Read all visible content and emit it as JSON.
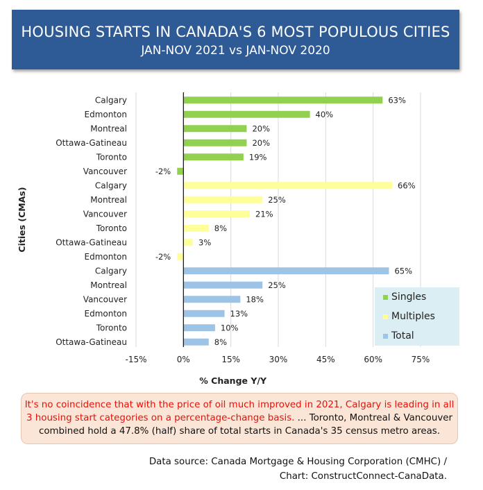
{
  "header": {
    "title": "HOUSING STARTS IN CANADA'S 6 MOST POPULOUS CITIES",
    "subtitle": "JAN-NOV 2021 vs JAN-NOV 2020"
  },
  "chart_data": {
    "type": "bar",
    "orientation": "horizontal",
    "xlabel": "% Change Y/Y",
    "ylabel": "Cities (CMAs)",
    "xlim": [
      -15,
      75
    ],
    "xticks": [
      -15,
      0,
      15,
      30,
      45,
      60,
      75
    ],
    "xtick_labels": [
      "-15%",
      "0%",
      "15%",
      "30%",
      "45%",
      "60%",
      "75%"
    ],
    "grid": true,
    "legend_position": "bottom-right",
    "series": [
      {
        "name": "Singles",
        "color": "#92d050",
        "categories": [
          "Calgary",
          "Edmonton",
          "Montreal",
          "Ottawa-Gatineau",
          "Toronto",
          "Vancouver"
        ],
        "values": [
          63,
          40,
          20,
          20,
          19,
          -2
        ],
        "labels": [
          "63%",
          "40%",
          "20%",
          "20%",
          "19%",
          "-2%"
        ]
      },
      {
        "name": "Multiples",
        "color": "#ffff99",
        "categories": [
          "Calgary",
          "Montreal",
          "Vancouver",
          "Toronto",
          "Ottawa-Gatineau",
          "Edmonton"
        ],
        "values": [
          66,
          25,
          21,
          8,
          3,
          -2
        ],
        "labels": [
          "66%",
          "25%",
          "21%",
          "8%",
          "3%",
          "-2%"
        ]
      },
      {
        "name": "Total",
        "color": "#9dc3e6",
        "categories": [
          "Calgary",
          "Montreal",
          "Vancouver",
          "Edmonton",
          "Toronto",
          "Ottawa-Gatineau"
        ],
        "values": [
          65,
          25,
          18,
          13,
          10,
          8
        ],
        "labels": [
          "65%",
          "25%",
          "18%",
          "13%",
          "10%",
          "8%"
        ]
      }
    ]
  },
  "note": {
    "line_red": "It's no coincidence that with the price of oil much improved in 2021, Calgary is leading in all 3 housing start categories on a percentage-change basis.",
    "line_black": " ... Toronto, Montreal & Vancouver combined hold a 47.8% (half) share of total starts in Canada's 35 census metro areas."
  },
  "source": {
    "line1": "Data source: Canada Mortgage & Housing Corporation (CMHC) /",
    "line2": "Chart: ConstructConnect-CanaData."
  }
}
